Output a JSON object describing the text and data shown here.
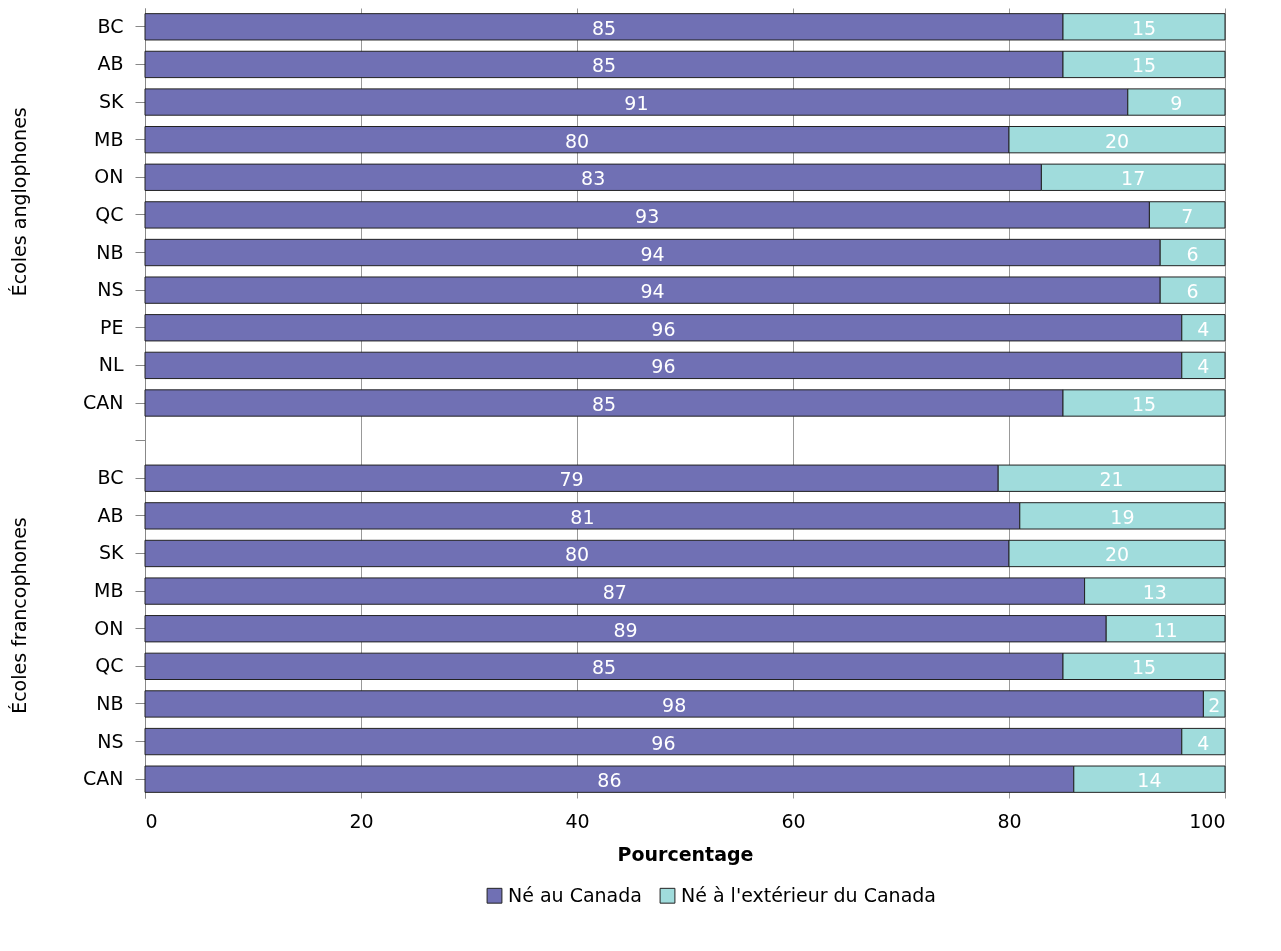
{
  "chart_data": {
    "type": "bar",
    "orientation": "horizontal",
    "stacked": true,
    "xlabel": "Pourcentage",
    "categories": [
      "BC",
      "AB",
      "SK",
      "MB",
      "ON",
      "QC",
      "NB",
      "NS",
      "PE",
      "NL",
      "CAN",
      null,
      "BC",
      "AB",
      "SK",
      "MB",
      "ON",
      "QC",
      "NB",
      "NS",
      "CAN"
    ],
    "series": [
      {
        "name": "Né au Canada",
        "color": "#7070b4",
        "values": [
          85,
          85,
          91,
          80,
          83,
          93,
          94,
          94,
          96,
          96,
          85,
          null,
          79,
          81,
          80,
          87,
          89,
          85,
          98,
          96,
          86
        ]
      },
      {
        "name": "Né à l'extérieur du Canada",
        "color": "#a0dcdc",
        "values": [
          15,
          15,
          9,
          20,
          17,
          7,
          6,
          6,
          4,
          4,
          15,
          null,
          21,
          19,
          20,
          13,
          11,
          15,
          2,
          4,
          14
        ]
      }
    ],
    "xlim": [
      0,
      100
    ],
    "xticks": [
      0,
      20,
      40,
      60,
      80,
      100
    ],
    "grid": "x",
    "legend": "bottom",
    "data_labels": true,
    "annotations": [
      "Écoles anglophones",
      "Écoles francophones"
    ]
  }
}
